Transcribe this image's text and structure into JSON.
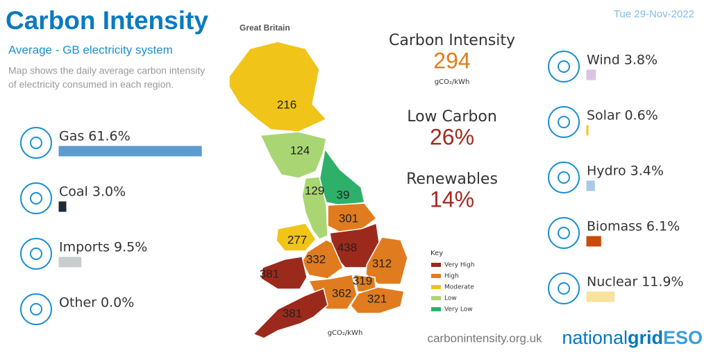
{
  "header": {
    "title": "Carbon Intensity",
    "region": "Great Britain",
    "date": "Tue 29-Nov-2022",
    "subtitle": "Average - GB electricity system",
    "description": [
      "Map shows the daily average carbon intensity",
      "of electricity consumed in each region."
    ]
  },
  "fuels_left": [
    {
      "label": "Gas 61.6%",
      "value": 61.6,
      "color": "#5b9bd0"
    },
    {
      "label": "Coal 3.0%",
      "value": 3.0,
      "color": "#1e2a38"
    },
    {
      "label": "Imports 9.5%",
      "value": 9.5,
      "color": "#c9cdcd"
    },
    {
      "label": "Other 0.0%",
      "value": 0.0,
      "color": "#999999"
    }
  ],
  "fuels_right": [
    {
      "label": "Wind 3.8%",
      "value": 3.8,
      "color": "#dcc3e3"
    },
    {
      "label": "Solar 0.6%",
      "value": 0.6,
      "color": "#f2c418"
    },
    {
      "label": "Hydro 3.4%",
      "value": 3.4,
      "color": "#abc9e4"
    },
    {
      "label": "Biomass 6.1%",
      "value": 6.1,
      "color": "#c94a0a"
    },
    {
      "label": "Nuclear 11.9%",
      "value": 11.9,
      "color": "#f9e29e"
    }
  ],
  "stats": [
    {
      "title": "Carbon Intensity",
      "value": "294",
      "unit": "gCO₂/kWh",
      "color": "#e07c1f"
    },
    {
      "title": "Low Carbon",
      "value": "26%",
      "color": "#a4281e"
    },
    {
      "title": "Renewables",
      "value": "14%",
      "color": "#a4281e"
    }
  ],
  "map": {
    "regions": [
      {
        "value": "216",
        "level": 2
      },
      {
        "value": "124",
        "level": 3
      },
      {
        "value": "39",
        "level": 4
      },
      {
        "value": "129",
        "level": 3
      },
      {
        "value": "301",
        "level": 1
      },
      {
        "value": "277",
        "level": 2
      },
      {
        "value": "438",
        "level": 0
      },
      {
        "value": "332",
        "level": 1
      },
      {
        "value": "312",
        "level": 1
      },
      {
        "value": "381",
        "level": 0
      },
      {
        "value": "319",
        "level": 1
      },
      {
        "value": "362",
        "level": 1
      },
      {
        "value": "321",
        "level": 1
      },
      {
        "value": "381",
        "level": 0
      }
    ],
    "unit": "gCO₂/kWh",
    "key": {
      "title": "Key",
      "levels": [
        {
          "label": "Very High",
          "color": "#9c2a1c"
        },
        {
          "label": "High",
          "color": "#e07c1f"
        },
        {
          "label": "Moderate",
          "color": "#f0c419"
        },
        {
          "label": "Low",
          "color": "#a9d673"
        },
        {
          "label": "Very Low",
          "color": "#2fb06a"
        }
      ]
    }
  },
  "footer": {
    "url": "carbonintensity.org.uk",
    "logo": [
      "national",
      "grid",
      "ESO"
    ]
  }
}
